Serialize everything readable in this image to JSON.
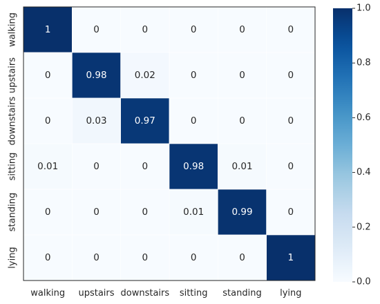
{
  "chart_data": {
    "type": "heatmap",
    "title": "",
    "xlabel": "",
    "ylabel": "",
    "x_categories": [
      "walking",
      "upstairs",
      "downstairs",
      "sitting",
      "standing",
      "lying"
    ],
    "y_categories": [
      "walking",
      "upstairs",
      "downstairs",
      "sitting",
      "standing",
      "lying"
    ],
    "values": [
      [
        1,
        0,
        0,
        0,
        0,
        0
      ],
      [
        0,
        0.98,
        0.02,
        0,
        0,
        0
      ],
      [
        0,
        0.03,
        0.97,
        0,
        0,
        0
      ],
      [
        0.01,
        0,
        0,
        0.98,
        0.01,
        0
      ],
      [
        0,
        0,
        0,
        0.01,
        0.99,
        0
      ],
      [
        0,
        0,
        0,
        0,
        0,
        1
      ]
    ],
    "cell_labels": [
      [
        "1",
        "0",
        "0",
        "0",
        "0",
        "0"
      ],
      [
        "0",
        "0.98",
        "0.02",
        "0",
        "0",
        "0"
      ],
      [
        "0",
        "0.03",
        "0.97",
        "0",
        "0",
        "0"
      ],
      [
        "0.01",
        "0",
        "0",
        "0.98",
        "0.01",
        "0"
      ],
      [
        "0",
        "0",
        "0",
        "0.01",
        "0.99",
        "0"
      ],
      [
        "0",
        "0",
        "0",
        "0",
        "0",
        "1"
      ]
    ],
    "colorscale": "Blues",
    "colorscale_low": "#f7fbff",
    "colorscale_high": "#08306b",
    "colorbar": {
      "range": [
        0,
        1
      ],
      "ticks": [
        0.0,
        0.2,
        0.4,
        0.6,
        0.8,
        1.0
      ],
      "tick_labels": [
        "0.0",
        "0.2",
        "0.4",
        "0.6",
        "0.8",
        "1.0"
      ]
    },
    "grid": false
  }
}
